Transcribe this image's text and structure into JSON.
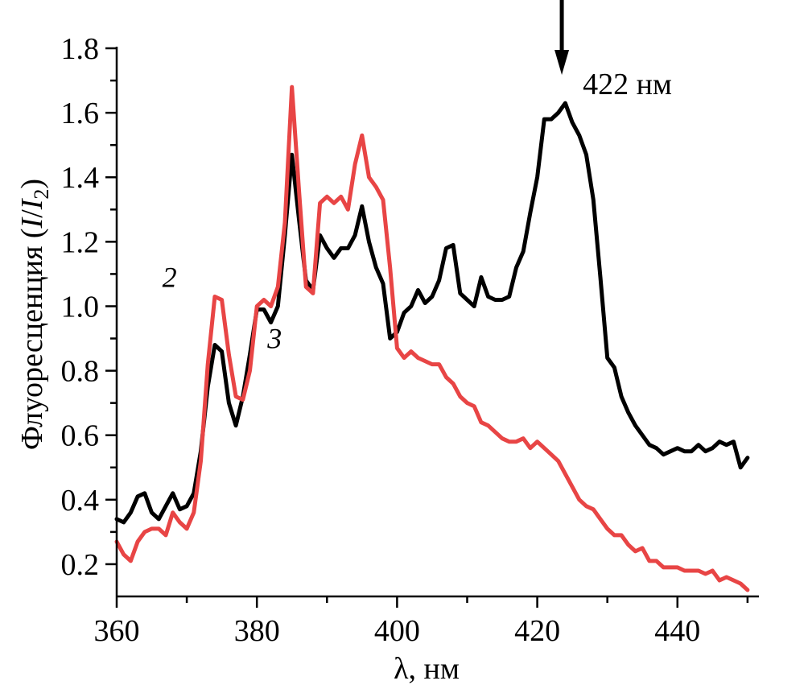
{
  "chart_data": {
    "type": "line",
    "title": "",
    "xlabel": "λ, нм",
    "ylabel_prefix": "Флуоресценция (",
    "ylabel_i": "I",
    "ylabel_slash": "/",
    "ylabel_i2": "I",
    "ylabel_sub": "2",
    "ylabel_suffix": ")",
    "xlim": [
      360,
      453
    ],
    "ylim": [
      0.1,
      1.8
    ],
    "xticks": [
      360,
      380,
      400,
      420,
      440
    ],
    "xtick_labels": [
      "360",
      "380",
      "400",
      "420",
      "440"
    ],
    "yticks": [
      0.2,
      0.4,
      0.6,
      0.8,
      1.0,
      1.2,
      1.4,
      1.6,
      1.8
    ],
    "ytick_labels": [
      "0.2",
      "0.4",
      "0.6",
      "0.8",
      "1.0",
      "1.2",
      "1.4",
      "1.6",
      "1.8"
    ],
    "grid": false,
    "annotation": {
      "text": "422 нм",
      "arrow_x": 423.5
    },
    "series": [
      {
        "label": "3",
        "label_pos": {
          "x": 381.5,
          "y": 0.87
        },
        "color": "#000000",
        "x": [
          360,
          361,
          362,
          363,
          364,
          365,
          366,
          367,
          368,
          369,
          370,
          371,
          372,
          373,
          374,
          375,
          376,
          377,
          378,
          379,
          380,
          381,
          382,
          383,
          384,
          385,
          386,
          387,
          388,
          389,
          390,
          391,
          392,
          393,
          394,
          395,
          396,
          397,
          398,
          399,
          400,
          401,
          402,
          403,
          404,
          405,
          406,
          407,
          408,
          409,
          410,
          411,
          412,
          413,
          414,
          415,
          416,
          417,
          418,
          419,
          420,
          421,
          422,
          423,
          424,
          425,
          426,
          427,
          428,
          429,
          430,
          431,
          432,
          433,
          434,
          435,
          436,
          437,
          438,
          439,
          440,
          441,
          442,
          443,
          444,
          445,
          446,
          447,
          448,
          449,
          450
        ],
        "values": [
          0.34,
          0.33,
          0.36,
          0.41,
          0.42,
          0.36,
          0.34,
          0.38,
          0.42,
          0.37,
          0.38,
          0.42,
          0.55,
          0.75,
          0.88,
          0.86,
          0.7,
          0.63,
          0.72,
          0.85,
          0.99,
          0.99,
          0.95,
          1.0,
          1.22,
          1.47,
          1.27,
          1.08,
          1.05,
          1.22,
          1.18,
          1.15,
          1.18,
          1.18,
          1.22,
          1.31,
          1.2,
          1.12,
          1.07,
          0.9,
          0.92,
          0.98,
          1.0,
          1.05,
          1.01,
          1.03,
          1.08,
          1.18,
          1.19,
          1.04,
          1.02,
          1.0,
          1.09,
          1.03,
          1.02,
          1.02,
          1.03,
          1.12,
          1.17,
          1.29,
          1.4,
          1.58,
          1.58,
          1.6,
          1.63,
          1.57,
          1.53,
          1.47,
          1.33,
          1.09,
          0.84,
          0.81,
          0.72,
          0.67,
          0.63,
          0.6,
          0.57,
          0.56,
          0.54,
          0.55,
          0.56,
          0.55,
          0.55,
          0.57,
          0.55,
          0.56,
          0.58,
          0.57,
          0.58,
          0.5,
          0.53
        ]
      },
      {
        "label": "2",
        "label_pos": {
          "x": 366.5,
          "y": 1.06
        },
        "color": "#e84545",
        "x": [
          360,
          361,
          362,
          363,
          364,
          365,
          366,
          367,
          368,
          369,
          370,
          371,
          372,
          373,
          374,
          375,
          376,
          377,
          378,
          379,
          380,
          381,
          382,
          383,
          384,
          385,
          386,
          387,
          388,
          389,
          390,
          391,
          392,
          393,
          394,
          395,
          396,
          397,
          398,
          399,
          400,
          401,
          402,
          403,
          404,
          405,
          406,
          407,
          408,
          409,
          410,
          411,
          412,
          413,
          414,
          415,
          416,
          417,
          418,
          419,
          420,
          421,
          422,
          423,
          424,
          425,
          426,
          427,
          428,
          429,
          430,
          431,
          432,
          433,
          434,
          435,
          436,
          437,
          438,
          439,
          440,
          441,
          442,
          443,
          444,
          445,
          446,
          447,
          448,
          449,
          450
        ],
        "values": [
          0.27,
          0.23,
          0.21,
          0.27,
          0.3,
          0.31,
          0.31,
          0.29,
          0.36,
          0.33,
          0.31,
          0.36,
          0.52,
          0.82,
          1.03,
          1.02,
          0.85,
          0.72,
          0.71,
          0.8,
          1.0,
          1.02,
          1.0,
          1.06,
          1.26,
          1.68,
          1.36,
          1.06,
          1.04,
          1.32,
          1.34,
          1.32,
          1.34,
          1.3,
          1.44,
          1.53,
          1.4,
          1.37,
          1.33,
          1.12,
          0.87,
          0.84,
          0.86,
          0.84,
          0.83,
          0.82,
          0.82,
          0.78,
          0.76,
          0.72,
          0.7,
          0.69,
          0.64,
          0.63,
          0.61,
          0.59,
          0.58,
          0.58,
          0.59,
          0.56,
          0.58,
          0.56,
          0.54,
          0.52,
          0.48,
          0.44,
          0.4,
          0.38,
          0.37,
          0.34,
          0.31,
          0.29,
          0.29,
          0.26,
          0.24,
          0.25,
          0.21,
          0.21,
          0.19,
          0.19,
          0.19,
          0.18,
          0.18,
          0.18,
          0.17,
          0.18,
          0.15,
          0.16,
          0.15,
          0.14,
          0.12
        ]
      }
    ]
  }
}
